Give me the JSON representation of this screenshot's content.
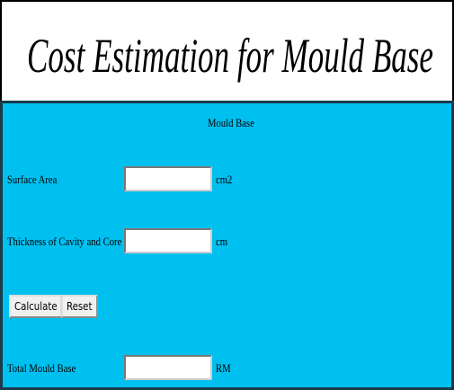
{
  "header": {
    "title": "Cost Estimation for Mould Base"
  },
  "form": {
    "heading": "Mould Base",
    "fields": [
      {
        "label": "Surface Area",
        "unit": "cm2"
      },
      {
        "label": "Thickness of Cavity and Core",
        "unit": "cm"
      }
    ],
    "buttons": [
      "Calculate",
      "Reset"
    ],
    "output": {
      "label": "Total Mould Base",
      "unit": "RM"
    }
  }
}
